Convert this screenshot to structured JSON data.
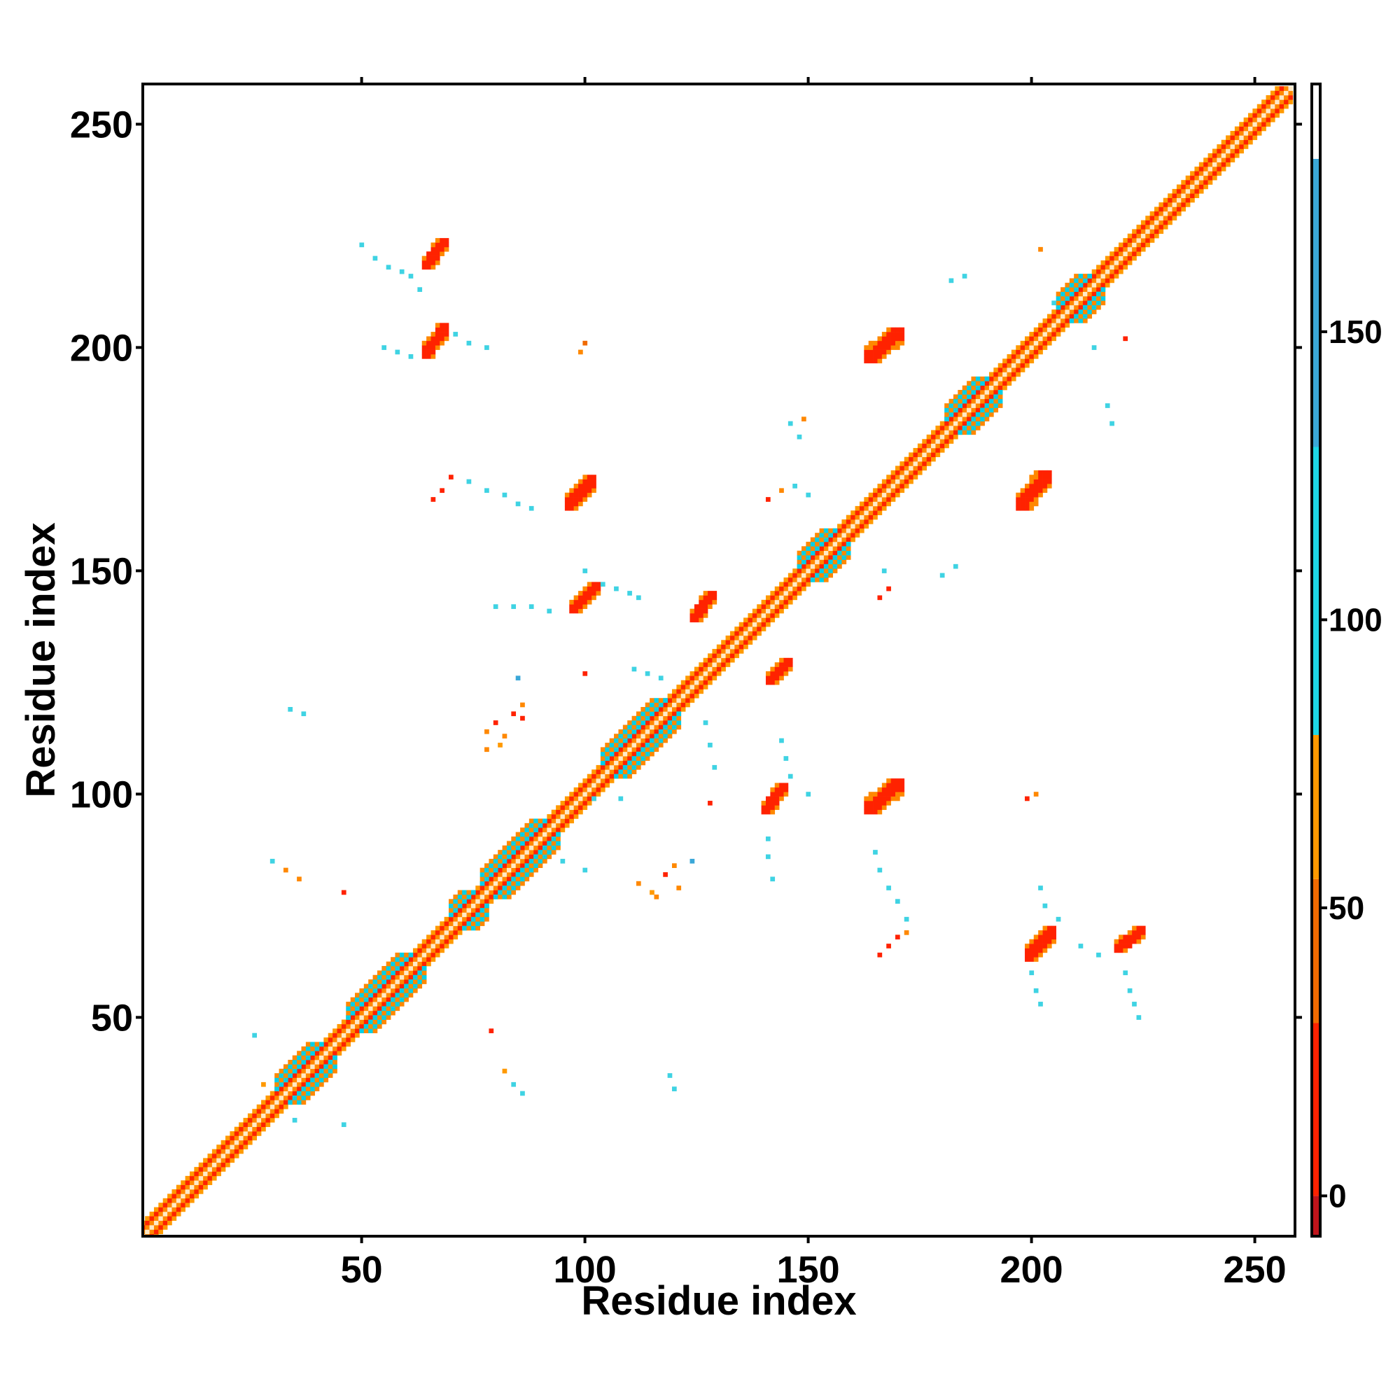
{
  "chart_data": {
    "type": "heatmap",
    "xlabel": "Residue index",
    "ylabel": "Residue index",
    "xlim": [
      1,
      259
    ],
    "ylim": [
      1,
      259
    ],
    "x_ticks": [
      50,
      100,
      150,
      200,
      250
    ],
    "y_ticks": [
      50,
      100,
      150,
      200,
      250
    ],
    "grid": false,
    "colorbar": {
      "placement": "right",
      "range": [
        -7,
        193
      ],
      "ticks": [
        0,
        50,
        100,
        150
      ],
      "bands": [
        {
          "from": -7,
          "to": 0,
          "color": "#c0141b"
        },
        {
          "from": 0,
          "to": 30,
          "color": "#ff2200"
        },
        {
          "from": 30,
          "to": 55,
          "color": "#f06a00"
        },
        {
          "from": 55,
          "to": 80,
          "color": "#ff9900"
        },
        {
          "from": 80,
          "to": 130,
          "color": "#1ed8e6"
        },
        {
          "from": 130,
          "to": 180,
          "color": "#3aa7d8"
        },
        {
          "from": 180,
          "to": 193,
          "color": "#ffffff"
        }
      ]
    },
    "diagonal": {
      "from": 1,
      "to": 258
    },
    "helix_segments": [
      {
        "start": 31,
        "end": 42,
        "color": "#00cfe8"
      },
      {
        "start": 47,
        "end": 62,
        "color": "#00cfe8"
      },
      {
        "start": 70,
        "end": 76,
        "color": "#00cfe8"
      },
      {
        "start": 77,
        "end": 92,
        "color": "#00cfe8"
      },
      {
        "start": 104,
        "end": 119,
        "color": "#00cfe8"
      },
      {
        "start": 148,
        "end": 157,
        "color": "#00cfe8"
      },
      {
        "start": 181,
        "end": 191,
        "color": "#00cfe8"
      },
      {
        "start": 206,
        "end": 214,
        "color": "#00cfe8"
      }
    ],
    "contact_patches": [
      {
        "x": [
          64,
          69
        ],
        "y": [
          218,
          224
        ],
        "color": "#ff2200"
      },
      {
        "x": [
          64,
          69
        ],
        "y": [
          198,
          205
        ],
        "color": "#ff2200"
      },
      {
        "x": [
          96,
          102
        ],
        "y": [
          164,
          171
        ],
        "color": "#ff2200"
      },
      {
        "x": [
          97,
          103
        ],
        "y": [
          141,
          147
        ],
        "color": "#ff2200"
      },
      {
        "x": [
          124,
          129
        ],
        "y": [
          139,
          145
        ],
        "color": "#ff2200"
      },
      {
        "x": [
          141,
          146
        ],
        "y": [
          125,
          130
        ],
        "color": "#ff2200"
      },
      {
        "x": [
          140,
          145
        ],
        "y": [
          96,
          102
        ],
        "color": "#ff2200"
      },
      {
        "x": [
          163,
          171
        ],
        "y": [
          197,
          204
        ],
        "color": "#ff2200"
      },
      {
        "x": [
          163,
          171
        ],
        "y": [
          96,
          103
        ],
        "color": "#ff2200"
      },
      {
        "x": [
          197,
          204
        ],
        "y": [
          164,
          172
        ],
        "color": "#ff2200"
      },
      {
        "x": [
          199,
          205
        ],
        "y": [
          63,
          70
        ],
        "color": "#ff2200"
      },
      {
        "x": [
          219,
          225
        ],
        "y": [
          65,
          70
        ],
        "color": "#ff2200"
      }
    ],
    "scatter_contacts": [
      {
        "x": 50,
        "y": 223,
        "color": "#3fd3e3"
      },
      {
        "x": 53,
        "y": 220,
        "color": "#3fd3e3"
      },
      {
        "x": 56,
        "y": 218,
        "color": "#3fd3e3"
      },
      {
        "x": 59,
        "y": 217,
        "color": "#3fd3e3"
      },
      {
        "x": 61,
        "y": 216,
        "color": "#3fd3e3"
      },
      {
        "x": 63,
        "y": 213,
        "color": "#3fd3e3"
      },
      {
        "x": 55,
        "y": 200,
        "color": "#3fd3e3"
      },
      {
        "x": 58,
        "y": 199,
        "color": "#3fd3e3"
      },
      {
        "x": 61,
        "y": 198,
        "color": "#3fd3e3"
      },
      {
        "x": 71,
        "y": 203,
        "color": "#3fd3e3"
      },
      {
        "x": 74,
        "y": 201,
        "color": "#3fd3e3"
      },
      {
        "x": 78,
        "y": 200,
        "color": "#3fd3e3"
      },
      {
        "x": 99,
        "y": 199,
        "color": "#ff8800"
      },
      {
        "x": 100,
        "y": 201,
        "color": "#f06a00"
      },
      {
        "x": 66,
        "y": 166,
        "color": "#ff2200"
      },
      {
        "x": 68,
        "y": 168,
        "color": "#ff2200"
      },
      {
        "x": 70,
        "y": 171,
        "color": "#ff2200"
      },
      {
        "x": 74,
        "y": 170,
        "color": "#3fd3e3"
      },
      {
        "x": 78,
        "y": 168,
        "color": "#3fd3e3"
      },
      {
        "x": 82,
        "y": 167,
        "color": "#3fd3e3"
      },
      {
        "x": 85,
        "y": 165,
        "color": "#3fd3e3"
      },
      {
        "x": 88,
        "y": 164,
        "color": "#3fd3e3"
      },
      {
        "x": 80,
        "y": 142,
        "color": "#3fd3e3"
      },
      {
        "x": 84,
        "y": 142,
        "color": "#3fd3e3"
      },
      {
        "x": 88,
        "y": 142,
        "color": "#3fd3e3"
      },
      {
        "x": 92,
        "y": 141,
        "color": "#3fd3e3"
      },
      {
        "x": 100,
        "y": 150,
        "color": "#3fd3e3"
      },
      {
        "x": 104,
        "y": 147,
        "color": "#3fd3e3"
      },
      {
        "x": 107,
        "y": 146,
        "color": "#3fd3e3"
      },
      {
        "x": 110,
        "y": 145,
        "color": "#3fd3e3"
      },
      {
        "x": 112,
        "y": 144,
        "color": "#3fd3e3"
      },
      {
        "x": 111,
        "y": 128,
        "color": "#3fd3e3"
      },
      {
        "x": 114,
        "y": 127,
        "color": "#3fd3e3"
      },
      {
        "x": 117,
        "y": 126,
        "color": "#3fd3e3"
      },
      {
        "x": 100,
        "y": 127,
        "color": "#ff2200"
      },
      {
        "x": 85,
        "y": 126,
        "color": "#3aa7d8"
      },
      {
        "x": 34,
        "y": 119,
        "color": "#3fd3e3"
      },
      {
        "x": 37,
        "y": 118,
        "color": "#3fd3e3"
      },
      {
        "x": 78,
        "y": 114,
        "color": "#ff8800"
      },
      {
        "x": 80,
        "y": 116,
        "color": "#ff2200"
      },
      {
        "x": 82,
        "y": 113,
        "color": "#ff8800"
      },
      {
        "x": 84,
        "y": 118,
        "color": "#ff2200"
      },
      {
        "x": 78,
        "y": 110,
        "color": "#ff8800"
      },
      {
        "x": 81,
        "y": 111,
        "color": "#ff9900"
      },
      {
        "x": 86,
        "y": 120,
        "color": "#ff8800"
      },
      {
        "x": 86,
        "y": 117,
        "color": "#ff2200"
      },
      {
        "x": 30,
        "y": 85,
        "color": "#3fd3e3"
      },
      {
        "x": 33,
        "y": 83,
        "color": "#ff8800"
      },
      {
        "x": 36,
        "y": 81,
        "color": "#ff8800"
      },
      {
        "x": 46,
        "y": 78,
        "color": "#ff2200"
      },
      {
        "x": 112,
        "y": 80,
        "color": "#ff8800"
      },
      {
        "x": 115,
        "y": 78,
        "color": "#ff9900"
      },
      {
        "x": 118,
        "y": 82,
        "color": "#ff2200"
      },
      {
        "x": 120,
        "y": 84,
        "color": "#ff8800"
      },
      {
        "x": 116,
        "y": 77,
        "color": "#ff8800"
      },
      {
        "x": 121,
        "y": 79,
        "color": "#ff8800"
      },
      {
        "x": 124,
        "y": 85,
        "color": "#3aa7d8"
      },
      {
        "x": 95,
        "y": 85,
        "color": "#3fd3e3"
      },
      {
        "x": 100,
        "y": 83,
        "color": "#3fd3e3"
      },
      {
        "x": 127,
        "y": 116,
        "color": "#3fd3e3"
      },
      {
        "x": 128,
        "y": 111,
        "color": "#3fd3e3"
      },
      {
        "x": 129,
        "y": 106,
        "color": "#3fd3e3"
      },
      {
        "x": 128,
        "y": 98,
        "color": "#ff2200"
      },
      {
        "x": 144,
        "y": 112,
        "color": "#3fd3e3"
      },
      {
        "x": 145,
        "y": 108,
        "color": "#3fd3e3"
      },
      {
        "x": 146,
        "y": 104,
        "color": "#3fd3e3"
      },
      {
        "x": 150,
        "y": 100,
        "color": "#3fd3e3"
      },
      {
        "x": 141,
        "y": 90,
        "color": "#3fd3e3"
      },
      {
        "x": 141,
        "y": 86,
        "color": "#3fd3e3"
      },
      {
        "x": 142,
        "y": 81,
        "color": "#3fd3e3"
      },
      {
        "x": 146,
        "y": 183,
        "color": "#3fd3e3"
      },
      {
        "x": 149,
        "y": 184,
        "color": "#ff8800"
      },
      {
        "x": 148,
        "y": 180,
        "color": "#3fd3e3"
      },
      {
        "x": 141,
        "y": 166,
        "color": "#ff2200"
      },
      {
        "x": 144,
        "y": 168,
        "color": "#ff8800"
      },
      {
        "x": 147,
        "y": 169,
        "color": "#3fd3e3"
      },
      {
        "x": 150,
        "y": 167,
        "color": "#3fd3e3"
      },
      {
        "x": 167,
        "y": 150,
        "color": "#3fd3e3"
      },
      {
        "x": 168,
        "y": 146,
        "color": "#ff2200"
      },
      {
        "x": 166,
        "y": 144,
        "color": "#ff2200"
      },
      {
        "x": 180,
        "y": 149,
        "color": "#3fd3e3"
      },
      {
        "x": 183,
        "y": 151,
        "color": "#3fd3e3"
      },
      {
        "x": 182,
        "y": 215,
        "color": "#3fd3e3"
      },
      {
        "x": 185,
        "y": 216,
        "color": "#3fd3e3"
      },
      {
        "x": 202,
        "y": 222,
        "color": "#ff8800"
      },
      {
        "x": 205,
        "y": 210,
        "color": "#3fd3e3"
      },
      {
        "x": 214,
        "y": 200,
        "color": "#3fd3e3"
      },
      {
        "x": 217,
        "y": 187,
        "color": "#3fd3e3"
      },
      {
        "x": 218,
        "y": 183,
        "color": "#3fd3e3"
      },
      {
        "x": 221,
        "y": 202,
        "color": "#ff2200"
      },
      {
        "x": 199,
        "y": 99,
        "color": "#ff2200"
      },
      {
        "x": 201,
        "y": 100,
        "color": "#ff8800"
      },
      {
        "x": 165,
        "y": 87,
        "color": "#3fd3e3"
      },
      {
        "x": 166,
        "y": 83,
        "color": "#3fd3e3"
      },
      {
        "x": 168,
        "y": 79,
        "color": "#3fd3e3"
      },
      {
        "x": 170,
        "y": 76,
        "color": "#3fd3e3"
      },
      {
        "x": 172,
        "y": 72,
        "color": "#3fd3e3"
      },
      {
        "x": 172,
        "y": 69,
        "color": "#ff8800"
      },
      {
        "x": 166,
        "y": 64,
        "color": "#ff2200"
      },
      {
        "x": 168,
        "y": 66,
        "color": "#ff2200"
      },
      {
        "x": 170,
        "y": 68,
        "color": "#ff2200"
      },
      {
        "x": 202,
        "y": 79,
        "color": "#3fd3e3"
      },
      {
        "x": 203,
        "y": 75,
        "color": "#3fd3e3"
      },
      {
        "x": 206,
        "y": 72,
        "color": "#3fd3e3"
      },
      {
        "x": 211,
        "y": 66,
        "color": "#3fd3e3"
      },
      {
        "x": 215,
        "y": 64,
        "color": "#3fd3e3"
      },
      {
        "x": 200,
        "y": 60,
        "color": "#3fd3e3"
      },
      {
        "x": 201,
        "y": 56,
        "color": "#3fd3e3"
      },
      {
        "x": 202,
        "y": 53,
        "color": "#3fd3e3"
      },
      {
        "x": 221,
        "y": 60,
        "color": "#3fd3e3"
      },
      {
        "x": 222,
        "y": 56,
        "color": "#3fd3e3"
      },
      {
        "x": 223,
        "y": 53,
        "color": "#3fd3e3"
      },
      {
        "x": 224,
        "y": 50,
        "color": "#3fd3e3"
      },
      {
        "x": 79,
        "y": 47,
        "color": "#ff2200"
      },
      {
        "x": 82,
        "y": 38,
        "color": "#ff9900"
      },
      {
        "x": 84,
        "y": 35,
        "color": "#3fd3e3"
      },
      {
        "x": 86,
        "y": 33,
        "color": "#3fd3e3"
      },
      {
        "x": 119,
        "y": 37,
        "color": "#3fd3e3"
      },
      {
        "x": 120,
        "y": 34,
        "color": "#3fd3e3"
      },
      {
        "x": 26,
        "y": 46,
        "color": "#3fd3e3"
      },
      {
        "x": 28,
        "y": 35,
        "color": "#ff9900"
      },
      {
        "x": 35,
        "y": 27,
        "color": "#3fd3e3"
      },
      {
        "x": 46,
        "y": 26,
        "color": "#3fd3e3"
      },
      {
        "x": 102,
        "y": 99,
        "color": "#3fd3e3"
      },
      {
        "x": 108,
        "y": 99,
        "color": "#3fd3e3"
      }
    ]
  }
}
